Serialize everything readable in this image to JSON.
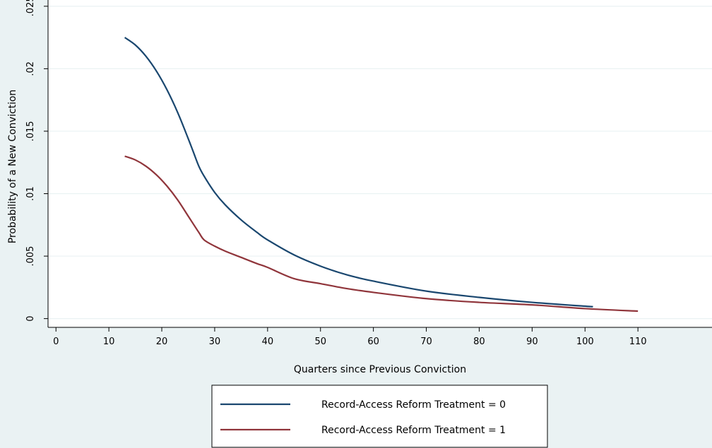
{
  "chart_data": {
    "type": "line",
    "xlabel": "Quarters since Previous Conviction",
    "ylabel": "Probability of a New Conviction",
    "xlim": [
      -1.5,
      124
    ],
    "ylim": [
      -0.0007,
      0.0255
    ],
    "x_ticks": [
      0,
      10,
      20,
      30,
      40,
      50,
      60,
      70,
      80,
      90,
      100,
      110
    ],
    "x_tick_labels": [
      "0",
      "10",
      "20",
      "30",
      "40",
      "50",
      "60",
      "70",
      "80",
      "90",
      "100",
      "110"
    ],
    "y_ticks": [
      0,
      0.005,
      0.01,
      0.015,
      0.02,
      0.025
    ],
    "y_tick_labels": [
      "0",
      ".005",
      ".01",
      ".015",
      ".02",
      ".025"
    ],
    "grid": true,
    "legend_position": "bottom-center",
    "series": [
      {
        "name": "Record-Access Reform Treatment = 0",
        "color": "#1a476f",
        "x": [
          13,
          15,
          17,
          19,
          21,
          23,
          25,
          26,
          27,
          28,
          30,
          32,
          35,
          38,
          40,
          45,
          50,
          55,
          60,
          70,
          80,
          90,
          101.5
        ],
        "y": [
          0.0225,
          0.0219,
          0.021,
          0.0198,
          0.0183,
          0.0165,
          0.0144,
          0.0133,
          0.0122,
          0.0114,
          0.0101,
          0.0091,
          0.0079,
          0.0069,
          0.0063,
          0.0051,
          0.0042,
          0.0035,
          0.003,
          0.0022,
          0.0017,
          0.0013,
          0.00095
        ]
      },
      {
        "name": "Record-Access Reform Treatment = 1",
        "color": "#90353b",
        "x": [
          13,
          15,
          17,
          19,
          21,
          23,
          25,
          27,
          28,
          30,
          32,
          35,
          38,
          40,
          45,
          50,
          55,
          60,
          70,
          80,
          90,
          100,
          110
        ],
        "y": [
          0.013,
          0.0127,
          0.0122,
          0.0115,
          0.0106,
          0.0095,
          0.0082,
          0.0069,
          0.0063,
          0.0058,
          0.0054,
          0.0049,
          0.0044,
          0.0041,
          0.0032,
          0.0028,
          0.0024,
          0.0021,
          0.0016,
          0.0013,
          0.0011,
          0.0008,
          0.0006
        ]
      }
    ]
  }
}
